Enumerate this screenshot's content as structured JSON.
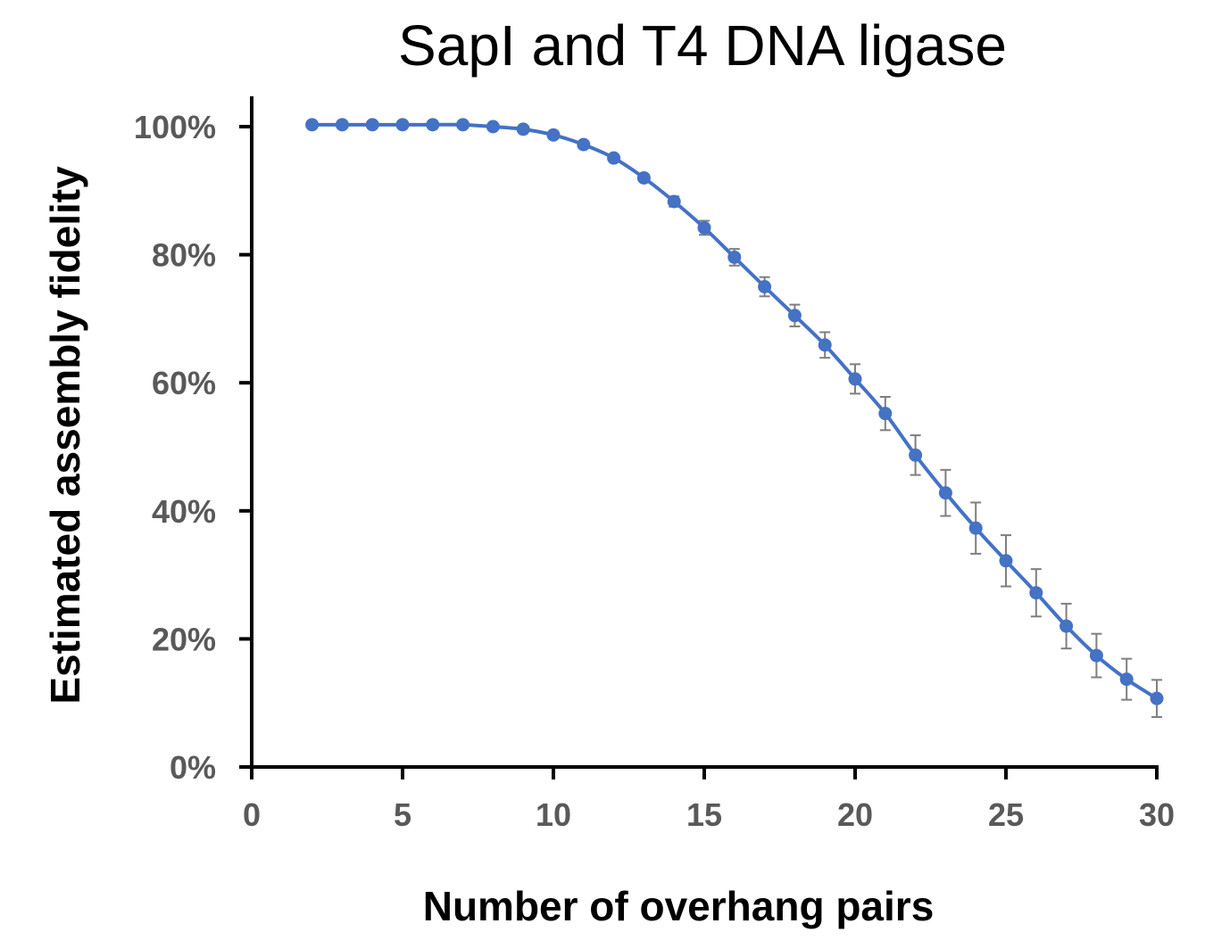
{
  "chart_data": {
    "type": "line",
    "title": "SapI and T4 DNA ligase",
    "xlabel": "Number of overhang pairs",
    "ylabel": "Estimated assembly fidelity",
    "xlim": [
      0,
      30
    ],
    "ylim": [
      0,
      100
    ],
    "x_ticks": [
      0,
      5,
      10,
      15,
      20,
      25,
      30
    ],
    "x_tick_labels": [
      "0",
      "5",
      "10",
      "15",
      "20",
      "25",
      "30"
    ],
    "y_ticks": [
      0,
      20,
      40,
      60,
      80,
      100
    ],
    "y_tick_labels": [
      "0%",
      "20%",
      "40%",
      "60%",
      "80%",
      "100%"
    ],
    "grid": false,
    "legend": "none",
    "series": [
      {
        "color": "#4472c4",
        "error_bar_color": "#7f7f7f",
        "x": [
          2,
          3,
          4,
          5,
          6,
          7,
          8,
          9,
          10,
          11,
          12,
          13,
          14,
          15,
          16,
          17,
          18,
          19,
          20,
          21,
          22,
          23,
          24,
          25,
          26,
          27,
          28,
          29,
          30
        ],
        "y": [
          100.3,
          100.3,
          100.3,
          100.3,
          100.3,
          100.3,
          100.0,
          99.6,
          98.7,
          97.2,
          95.1,
          92.0,
          88.3,
          84.2,
          79.6,
          75.0,
          70.5,
          65.9,
          60.6,
          55.2,
          48.7,
          42.8,
          37.3,
          32.2,
          27.2,
          22.0,
          17.4,
          13.7,
          10.7
        ],
        "error": [
          0,
          0,
          0,
          0,
          0,
          0,
          0,
          0,
          0,
          0,
          0.4,
          0.5,
          0.8,
          1.1,
          1.3,
          1.5,
          1.7,
          2.0,
          2.3,
          2.6,
          3.1,
          3.6,
          4.0,
          4.0,
          3.7,
          3.5,
          3.4,
          3.2,
          2.9
        ]
      }
    ]
  }
}
